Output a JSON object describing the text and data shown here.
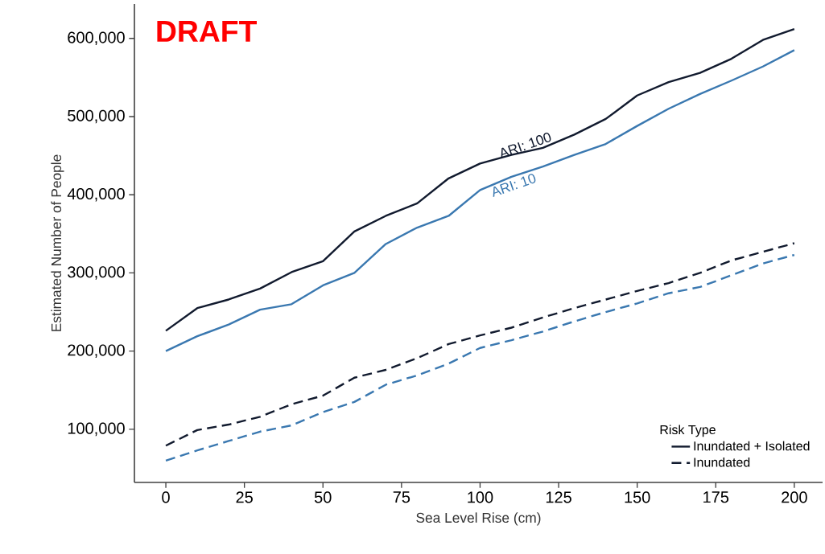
{
  "chart_data": {
    "type": "line",
    "xlabel": "Sea Level Rise (cm)",
    "ylabel": "Estimated Number of People",
    "x": [
      0,
      10,
      20,
      30,
      40,
      50,
      60,
      70,
      80,
      90,
      100,
      110,
      120,
      130,
      140,
      150,
      160,
      170,
      180,
      190,
      200
    ],
    "series": [
      {
        "name": "Inundated + Isolated",
        "color": "#111a2e",
        "line_style": "solid",
        "values": [
          226000,
          255000,
          266000,
          280000,
          301000,
          315000,
          353000,
          373000,
          389000,
          421000,
          440000,
          451000,
          460000,
          477000,
          497000,
          527000,
          544000,
          556000,
          574000,
          598000,
          612000
        ]
      },
      {
        "color": "#3a78b0",
        "line_style": "solid",
        "values": [
          200000,
          219000,
          234000,
          253000,
          260000,
          284000,
          300000,
          337000,
          358000,
          373000,
          406000,
          423000,
          436000,
          451000,
          465000,
          488000,
          510000,
          529000,
          546000,
          564000,
          585000
        ]
      },
      {
        "name": "Inundated",
        "color": "#111a2e",
        "line_style": "dashed",
        "values": [
          79000,
          99000,
          106000,
          116000,
          132000,
          143000,
          166000,
          176000,
          191000,
          209000,
          220000,
          230000,
          243000,
          255000,
          266000,
          277000,
          287000,
          300000,
          316000,
          327000,
          338000
        ]
      },
      {
        "color": "#3a78b0",
        "line_style": "dashed",
        "values": [
          60000,
          73000,
          85000,
          97000,
          105000,
          122000,
          135000,
          157000,
          169000,
          184000,
          204000,
          214000,
          225000,
          238000,
          250000,
          261000,
          274000,
          282000,
          297000,
          312000,
          323000
        ]
      }
    ],
    "legend": "bottom right",
    "legend_title": "Risk Type",
    "xlim": [
      -10,
      209
    ],
    "ylim": [
      32000,
      644000
    ],
    "xticks": [
      0,
      25,
      50,
      75,
      100,
      125,
      150,
      175,
      200
    ],
    "yticks": [
      {
        "value": 100000,
        "label": "100,000"
      },
      {
        "value": 200000,
        "label": "200,000"
      },
      {
        "value": 300000,
        "label": "300,000"
      },
      {
        "value": 400000,
        "label": "400,000"
      },
      {
        "value": 500000,
        "label": "500,000"
      },
      {
        "value": 600000,
        "label": "600,000"
      }
    ],
    "grid": false,
    "annotations": [
      "DRAFT",
      {
        "text": "ARI: 100",
        "x": 115,
        "y": 456000
      },
      {
        "text": "ARI: 10",
        "x": 110,
        "y": 420000
      }
    ]
  }
}
